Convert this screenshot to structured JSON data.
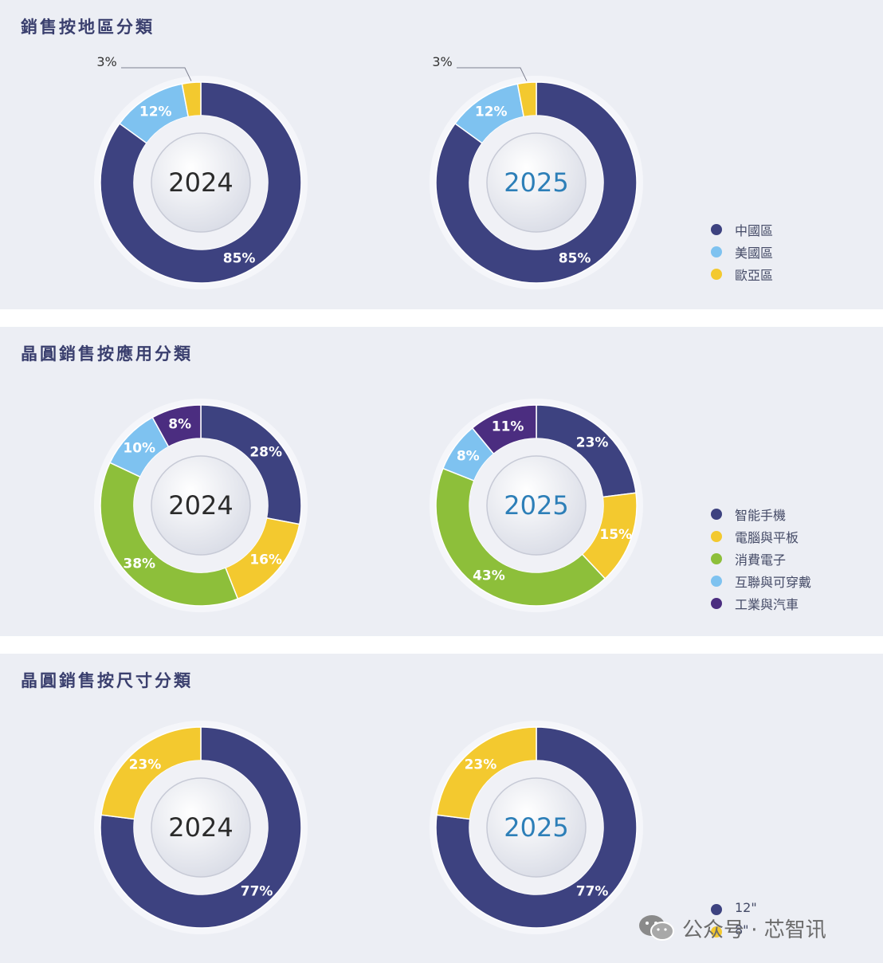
{
  "chart_data": [
    {
      "type": "pie",
      "title": "銷售按地區分類",
      "categories": [
        "中國區",
        "美國區",
        "歐亞區"
      ],
      "series": [
        {
          "name": "2024",
          "values": [
            85,
            12,
            3
          ]
        },
        {
          "name": "2025",
          "values": [
            85,
            12,
            3
          ]
        }
      ],
      "value_labels": {
        "2024": [
          "85%",
          "12%",
          "3%"
        ],
        "2025": [
          "85%",
          "12%",
          "3%"
        ]
      },
      "colors": [
        "#3d4280",
        "#7ec2f0",
        "#f3c92f"
      ],
      "center_labels": [
        "2024",
        "2025"
      ],
      "legend": "right"
    },
    {
      "type": "pie",
      "title": "晶圓銷售按應用分類",
      "categories": [
        "智能手機",
        "電腦與平板",
        "消費電子",
        "互聯與可穿戴",
        "工業與汽車"
      ],
      "series": [
        {
          "name": "2024",
          "values": [
            28,
            16,
            38,
            10,
            8
          ]
        },
        {
          "name": "2025",
          "values": [
            23,
            15,
            43,
            8,
            11
          ]
        }
      ],
      "value_labels": {
        "2024": [
          "28%",
          "16%",
          "38%",
          "10%",
          "8%"
        ],
        "2025": [
          "23%",
          "15%",
          "43%",
          "8%",
          "11%"
        ]
      },
      "colors": [
        "#3d4280",
        "#f3c92f",
        "#8dbf3a",
        "#7ec2f0",
        "#4b2d80"
      ],
      "center_labels": [
        "2024",
        "2025"
      ],
      "legend": "right"
    },
    {
      "type": "pie",
      "title": "晶圓銷售按尺寸分類",
      "categories": [
        "12\"",
        "8\""
      ],
      "series": [
        {
          "name": "2024",
          "values": [
            77,
            23
          ]
        },
        {
          "name": "2025",
          "values": [
            77,
            23
          ]
        }
      ],
      "value_labels": {
        "2024": [
          "77%",
          "23%"
        ],
        "2025": [
          "77%",
          "23%"
        ]
      },
      "colors": [
        "#3d4280",
        "#f3c92f"
      ],
      "center_labels": [
        "2024",
        "2025"
      ],
      "legend": "right"
    }
  ],
  "year_colors": [
    "#2b2b2b",
    "#2d7fb8"
  ],
  "watermark": {
    "text": "公众号 · 芯智讯",
    "icon": "wechat-icon"
  }
}
